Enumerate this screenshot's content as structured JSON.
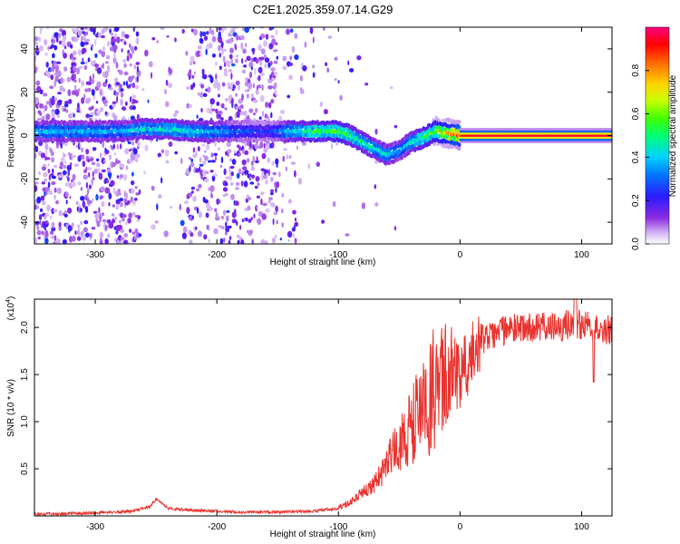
{
  "title": "C2E1.2025.359.07.14.G29",
  "chart_data": [
    {
      "type": "heatmap",
      "xlabel": "Height of straight line (km)",
      "ylabel": "Frequency (Hz)",
      "xlim": [
        -350,
        125
      ],
      "ylim": [
        -50,
        50
      ],
      "xticks": [
        -300,
        -200,
        -100,
        0,
        100
      ],
      "yticks": [
        -40,
        -20,
        0,
        20,
        40
      ],
      "colorbar": {
        "label": "Normalized spectral amplitude",
        "range": [
          0,
          1
        ],
        "ticks": [
          "0.0",
          "0.2",
          "0.4",
          "0.6",
          "0.8"
        ],
        "tick_values": [
          0.0,
          0.2,
          0.4,
          0.6,
          0.8
        ]
      },
      "ridge": {
        "x": [
          -300,
          -280,
          -260,
          -240,
          -220,
          -200,
          -180,
          -160,
          -150,
          -140,
          -120,
          -100,
          -90,
          -80,
          -70,
          -60,
          -55,
          -50,
          -45,
          -40,
          -30,
          -20,
          -10,
          0,
          10,
          50,
          100,
          125
        ],
        "freq": [
          2,
          2,
          3,
          3,
          2,
          2,
          2,
          2,
          2,
          2,
          2,
          2,
          0,
          -3,
          -6,
          -9,
          -8,
          -7,
          -5,
          -3,
          -1,
          2,
          1,
          0,
          0,
          0,
          0,
          0
        ],
        "amplitude": [
          0.4,
          0.4,
          0.45,
          0.45,
          0.45,
          0.4,
          0.3,
          0.25,
          0.3,
          0.45,
          0.55,
          0.6,
          0.55,
          0.5,
          0.45,
          0.45,
          0.4,
          0.4,
          0.4,
          0.45,
          0.55,
          0.65,
          0.8,
          0.9,
          0.95,
          0.95,
          0.95,
          0.95
        ]
      }
    },
    {
      "type": "line",
      "xlabel": "Height of straight line (km)",
      "ylabel": "SNR (10 * v/v)",
      "exponent_label": "(x10",
      "exponent_power": "4",
      "exponent_close": ")",
      "xlim": [
        -350,
        125
      ],
      "ylim": [
        0,
        2.3
      ],
      "xticks": [
        -300,
        -200,
        -100,
        0,
        100
      ],
      "yticks": [
        0.5,
        1.0,
        1.5,
        2.0
      ],
      "ytick_labels": [
        "0.5",
        "1.0",
        "1.5",
        "2.0"
      ],
      "color": "#e8332f",
      "series": [
        {
          "name": "SNR",
          "x": [
            -350,
            -300,
            -270,
            -255,
            -250,
            -240,
            -220,
            -200,
            -180,
            -150,
            -120,
            -100,
            -90,
            -80,
            -70,
            -60,
            -50,
            -40,
            -30,
            -20,
            -10,
            0,
            10,
            20,
            30,
            40,
            50,
            60,
            80,
            95,
            110,
            125
          ],
          "y": [
            0.02,
            0.03,
            0.05,
            0.1,
            0.18,
            0.08,
            0.06,
            0.05,
            0.04,
            0.04,
            0.05,
            0.08,
            0.15,
            0.25,
            0.35,
            0.55,
            0.75,
            0.95,
            1.15,
            1.35,
            1.5,
            1.62,
            1.75,
            1.87,
            1.95,
            1.98,
            2.0,
            2.0,
            2.0,
            2.05,
            2.0,
            1.97
          ]
        }
      ]
    }
  ]
}
